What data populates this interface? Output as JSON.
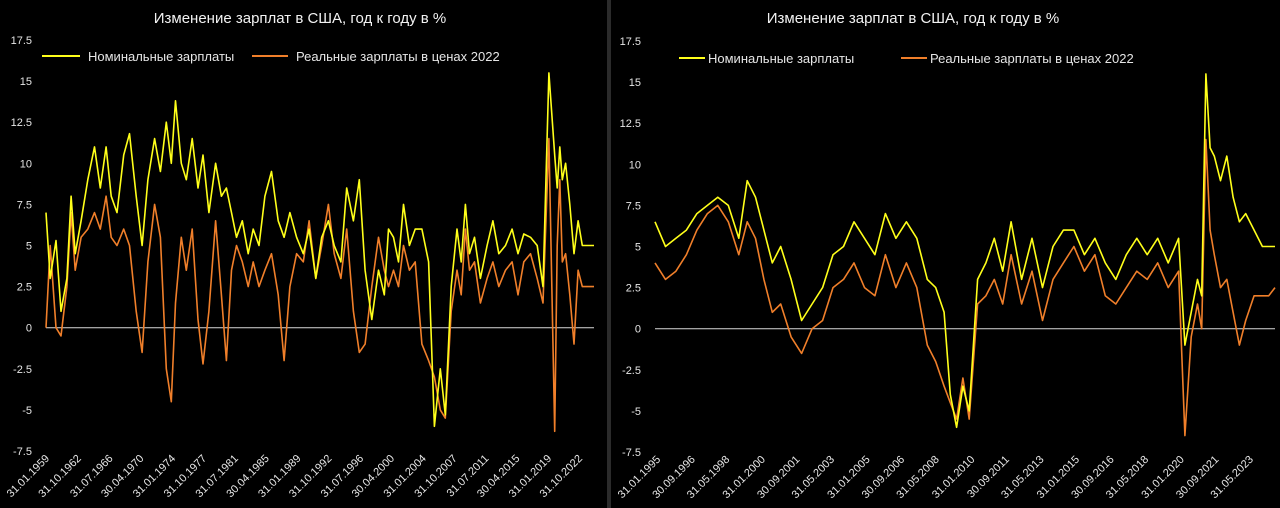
{
  "colors": {
    "nominal": "#ffff1a",
    "real": "#f07f2a",
    "zero_line": "#d9d9d9",
    "background": "#000000"
  },
  "chart_data": [
    {
      "type": "line",
      "title": "Изменение зарплат в США, год к году в %",
      "yticks": [
        "17.5",
        "15",
        "12.5",
        "10",
        "7.5",
        "5",
        "2.5",
        "0",
        "-2.5",
        "-5",
        "-7.5"
      ],
      "ylim": [
        -7.5,
        17.5
      ],
      "xlim": [
        1959.0,
        2024.6
      ],
      "xticks": [
        {
          "label": "31.01.1959",
          "x": 1959.0
        },
        {
          "label": "31.10.1962",
          "x": 1962.8
        },
        {
          "label": "31.07.1966",
          "x": 1966.6
        },
        {
          "label": "30.04.1970",
          "x": 1970.3
        },
        {
          "label": "31.01.1974",
          "x": 1974.1
        },
        {
          "label": "31.10.1977",
          "x": 1977.8
        },
        {
          "label": "31.07.1981",
          "x": 1981.6
        },
        {
          "label": "30.04.1985",
          "x": 1985.3
        },
        {
          "label": "31.01.1989",
          "x": 1989.1
        },
        {
          "label": "31.10.1992",
          "x": 1992.8
        },
        {
          "label": "31.07.1996",
          "x": 1996.6
        },
        {
          "label": "30.04.2000",
          "x": 2000.3
        },
        {
          "label": "31.01.2004",
          "x": 2004.1
        },
        {
          "label": "31.10.2007",
          "x": 2007.8
        },
        {
          "label": "31.07.2011",
          "x": 2011.6
        },
        {
          "label": "30.04.2015",
          "x": 2015.3
        },
        {
          "label": "31.01.2019",
          "x": 2019.1
        },
        {
          "label": "31.10.2022",
          "x": 2022.8
        }
      ],
      "legend_position": "top-left",
      "series": [
        {
          "name": "Номинальные зарплаты",
          "x": [
            1959.0,
            1959.5,
            1960.2,
            1960.8,
            1961.5,
            1962.0,
            1962.5,
            1963.2,
            1964.0,
            1964.8,
            1965.5,
            1966.2,
            1966.8,
            1967.5,
            1968.3,
            1969.0,
            1969.8,
            1970.5,
            1971.2,
            1972.0,
            1972.7,
            1973.4,
            1974.0,
            1974.5,
            1975.2,
            1975.8,
            1976.5,
            1977.2,
            1977.8,
            1978.5,
            1979.3,
            1980.0,
            1980.6,
            1981.2,
            1981.8,
            1982.5,
            1983.2,
            1983.8,
            1984.5,
            1985.2,
            1986.0,
            1986.8,
            1987.5,
            1988.2,
            1989.0,
            1989.8,
            1990.5,
            1991.3,
            1992.0,
            1992.8,
            1993.5,
            1994.3,
            1995.0,
            1995.8,
            1996.5,
            1997.2,
            1998.0,
            1998.8,
            1999.5,
            2000.0,
            2000.6,
            2001.2,
            2001.8,
            2002.5,
            2003.2,
            2004.0,
            2004.8,
            2005.5,
            2006.2,
            2006.8,
            2007.5,
            2008.2,
            2008.7,
            2009.2,
            2009.7,
            2010.3,
            2011.0,
            2011.8,
            2012.5,
            2013.2,
            2014.0,
            2014.8,
            2015.5,
            2016.2,
            2017.0,
            2017.8,
            2018.5,
            2019.2,
            2019.9,
            2020.2,
            2020.5,
            2020.8,
            2021.2,
            2021.7,
            2022.2,
            2022.7,
            2023.2,
            2023.8,
            2024.3,
            2024.6
          ],
          "values": [
            7.0,
            3.0,
            5.3,
            1.0,
            3.0,
            8.0,
            4.5,
            6.5,
            9.0,
            11.0,
            8.5,
            11.0,
            8.0,
            7.0,
            10.5,
            11.8,
            8.0,
            5.0,
            9.0,
            11.5,
            9.5,
            12.5,
            10.0,
            13.8,
            10.0,
            9.0,
            11.5,
            8.5,
            10.5,
            7.0,
            10.0,
            8.0,
            8.5,
            7.0,
            5.5,
            6.5,
            4.5,
            6.0,
            5.0,
            8.0,
            9.5,
            6.5,
            5.5,
            7.0,
            5.5,
            4.5,
            6.0,
            3.0,
            5.5,
            6.5,
            5.0,
            4.0,
            8.5,
            6.5,
            9.0,
            3.5,
            0.5,
            3.5,
            2.0,
            6.0,
            5.5,
            4.0,
            7.5,
            5.0,
            6.0,
            6.0,
            4.0,
            -6.0,
            -2.5,
            -5.3,
            2.5,
            6.0,
            4.0,
            7.5,
            4.5,
            5.5,
            3.0,
            5.0,
            6.5,
            4.5,
            5.0,
            6.0,
            4.5,
            5.7,
            5.5,
            5.0,
            2.5,
            15.5,
            10.5,
            8.5,
            11.0,
            9.0,
            10.0,
            7.5,
            4.5,
            6.5,
            5.0,
            5.0,
            5.0,
            5.0
          ],
          "color": "#ffff1a"
        },
        {
          "name": "Реальные зарплаты в ценах 2022",
          "x": [
            1959.0,
            1959.5,
            1960.2,
            1960.8,
            1961.5,
            1962.0,
            1962.5,
            1963.2,
            1964.0,
            1964.8,
            1965.5,
            1966.2,
            1966.8,
            1967.5,
            1968.3,
            1969.0,
            1969.8,
            1970.5,
            1971.2,
            1972.0,
            1972.7,
            1973.4,
            1974.0,
            1974.5,
            1975.2,
            1975.8,
            1976.5,
            1977.2,
            1977.8,
            1978.5,
            1979.3,
            1980.0,
            1980.6,
            1981.2,
            1981.8,
            1982.5,
            1983.2,
            1983.8,
            1984.5,
            1985.2,
            1986.0,
            1986.8,
            1987.5,
            1988.2,
            1989.0,
            1989.8,
            1990.5,
            1991.3,
            1992.0,
            1992.8,
            1993.5,
            1994.3,
            1995.0,
            1995.8,
            1996.5,
            1997.2,
            1998.0,
            1998.8,
            1999.5,
            2000.0,
            2000.6,
            2001.2,
            2001.8,
            2002.5,
            2003.2,
            2004.0,
            2004.8,
            2005.5,
            2006.2,
            2006.8,
            2007.5,
            2008.2,
            2008.7,
            2009.2,
            2009.7,
            2010.3,
            2011.0,
            2011.8,
            2012.5,
            2013.2,
            2014.0,
            2014.8,
            2015.5,
            2016.2,
            2017.0,
            2017.8,
            2018.5,
            2019.2,
            2019.9,
            2020.2,
            2020.5,
            2020.8,
            2021.2,
            2021.7,
            2022.2,
            2022.7,
            2023.2,
            2023.8,
            2024.3,
            2024.6
          ],
          "values": [
            0.0,
            5.0,
            0.0,
            -0.5,
            2.5,
            7.0,
            3.5,
            5.5,
            6.0,
            7.0,
            6.0,
            8.0,
            5.5,
            5.0,
            6.0,
            5.0,
            1.0,
            -1.5,
            4.0,
            7.5,
            5.5,
            -2.5,
            -4.5,
            1.5,
            5.5,
            3.5,
            6.0,
            0.5,
            -2.2,
            1.0,
            6.5,
            2.0,
            -2.0,
            3.5,
            5.0,
            4.0,
            2.5,
            4.0,
            2.5,
            3.5,
            4.5,
            2.0,
            -2.0,
            2.5,
            4.5,
            4.0,
            6.5,
            3.0,
            5.0,
            7.5,
            4.5,
            3.0,
            6.0,
            1.0,
            -1.5,
            -1.0,
            2.5,
            5.5,
            3.5,
            2.5,
            3.5,
            2.5,
            5.0,
            3.5,
            4.0,
            -1.0,
            -2.0,
            -3.0,
            -5.0,
            -5.5,
            1.0,
            3.5,
            2.0,
            6.0,
            3.5,
            4.0,
            1.5,
            3.0,
            4.0,
            2.5,
            3.5,
            4.0,
            2.0,
            4.0,
            4.5,
            3.0,
            1.5,
            11.5,
            -6.3,
            5.0,
            9.0,
            4.0,
            4.5,
            2.0,
            -1.0,
            3.5,
            2.5,
            2.5,
            2.5,
            2.5
          ],
          "color": "#f07f2a"
        }
      ]
    },
    {
      "type": "line",
      "title": "Изменение зарплат в США, год к году в %",
      "yticks": [
        "17.5",
        "15",
        "12.5",
        "10",
        "7.5",
        "5",
        "2.5",
        "0",
        "-2.5",
        "-5",
        "-7.5"
      ],
      "ylim": [
        -7.5,
        17.5
      ],
      "xlim": [
        1995.0,
        2024.6
      ],
      "xticks": [
        {
          "label": "31.01.1995",
          "x": 1995.1
        },
        {
          "label": "30.09.1996",
          "x": 1996.75
        },
        {
          "label": "31.05.1998",
          "x": 1998.4
        },
        {
          "label": "31.01.2000",
          "x": 2000.1
        },
        {
          "label": "30.09.2001",
          "x": 2001.75
        },
        {
          "label": "31.05.2003",
          "x": 2003.4
        },
        {
          "label": "31.01.2005",
          "x": 2005.1
        },
        {
          "label": "30.09.2006",
          "x": 2006.75
        },
        {
          "label": "31.05.2008",
          "x": 2008.4
        },
        {
          "label": "31.01.2010",
          "x": 2010.1
        },
        {
          "label": "30.09.2011",
          "x": 2011.75
        },
        {
          "label": "31.05.2013",
          "x": 2013.4
        },
        {
          "label": "31.01.2015",
          "x": 2015.1
        },
        {
          "label": "30.09.2016",
          "x": 2016.75
        },
        {
          "label": "31.05.2018",
          "x": 2018.4
        },
        {
          "label": "31.01.2020",
          "x": 2020.1
        },
        {
          "label": "30.09.2021",
          "x": 2021.75
        },
        {
          "label": "31.05.2023",
          "x": 2023.4
        }
      ],
      "legend_position": "top-left",
      "series": [
        {
          "name": "Номинальные зарплаты",
          "x": [
            1995.0,
            1995.5,
            1996.0,
            1996.5,
            1997.0,
            1997.5,
            1998.0,
            1998.5,
            1999.0,
            1999.4,
            1999.8,
            2000.2,
            2000.6,
            2001.0,
            2001.5,
            2002.0,
            2002.5,
            2003.0,
            2003.5,
            2004.0,
            2004.5,
            2005.0,
            2005.5,
            2006.0,
            2006.5,
            2007.0,
            2007.5,
            2008.0,
            2008.4,
            2008.8,
            2009.1,
            2009.4,
            2009.7,
            2010.0,
            2010.4,
            2010.8,
            2011.2,
            2011.6,
            2012.0,
            2012.5,
            2013.0,
            2013.5,
            2014.0,
            2014.5,
            2015.0,
            2015.5,
            2016.0,
            2016.5,
            2017.0,
            2017.5,
            2018.0,
            2018.5,
            2019.0,
            2019.5,
            2020.0,
            2020.3,
            2020.6,
            2020.9,
            2021.1,
            2021.3,
            2021.5,
            2021.7,
            2022.0,
            2022.3,
            2022.6,
            2022.9,
            2023.2,
            2023.6,
            2024.0,
            2024.3,
            2024.6
          ],
          "values": [
            6.5,
            5.0,
            5.5,
            6.0,
            7.0,
            7.5,
            8.0,
            7.5,
            5.5,
            9.0,
            8.0,
            6.0,
            4.0,
            5.0,
            3.0,
            0.5,
            1.5,
            2.5,
            4.5,
            5.0,
            6.5,
            5.5,
            4.5,
            7.0,
            5.5,
            6.5,
            5.5,
            3.0,
            2.5,
            1.0,
            -4.0,
            -6.0,
            -3.5,
            -5.0,
            3.0,
            4.0,
            5.5,
            3.5,
            6.5,
            3.0,
            5.5,
            2.5,
            5.0,
            6.0,
            6.0,
            4.5,
            5.5,
            4.0,
            3.0,
            4.5,
            5.5,
            4.5,
            5.5,
            4.0,
            5.5,
            -1.0,
            1.0,
            3.0,
            2.0,
            15.5,
            11.0,
            10.5,
            9.0,
            10.5,
            8.0,
            6.5,
            7.0,
            6.0,
            5.0,
            5.0,
            5.0
          ],
          "color": "#ffff1a"
        },
        {
          "name": "Реальные зарплаты в ценах 2022",
          "x": [
            1995.0,
            1995.5,
            1996.0,
            1996.5,
            1997.0,
            1997.5,
            1998.0,
            1998.5,
            1999.0,
            1999.4,
            1999.8,
            2000.2,
            2000.6,
            2001.0,
            2001.5,
            2002.0,
            2002.5,
            2003.0,
            2003.5,
            2004.0,
            2004.5,
            2005.0,
            2005.5,
            2006.0,
            2006.5,
            2007.0,
            2007.5,
            2008.0,
            2008.4,
            2008.8,
            2009.1,
            2009.4,
            2009.7,
            2010.0,
            2010.4,
            2010.8,
            2011.2,
            2011.6,
            2012.0,
            2012.5,
            2013.0,
            2013.5,
            2014.0,
            2014.5,
            2015.0,
            2015.5,
            2016.0,
            2016.5,
            2017.0,
            2017.5,
            2018.0,
            2018.5,
            2019.0,
            2019.5,
            2020.0,
            2020.3,
            2020.6,
            2020.9,
            2021.1,
            2021.3,
            2021.5,
            2021.7,
            2022.0,
            2022.3,
            2022.6,
            2022.9,
            2023.2,
            2023.6,
            2024.0,
            2024.3,
            2024.6
          ],
          "values": [
            4.0,
            3.0,
            3.5,
            4.5,
            6.0,
            7.0,
            7.5,
            6.5,
            4.5,
            6.5,
            5.5,
            3.0,
            1.0,
            1.5,
            -0.5,
            -1.5,
            0.0,
            0.5,
            2.5,
            3.0,
            4.0,
            2.5,
            2.0,
            4.5,
            2.5,
            4.0,
            2.5,
            -1.0,
            -2.0,
            -3.5,
            -4.5,
            -5.5,
            -3.0,
            -5.5,
            1.5,
            2.0,
            3.0,
            1.5,
            4.5,
            1.5,
            3.5,
            0.5,
            3.0,
            4.0,
            5.0,
            3.5,
            4.5,
            2.0,
            1.5,
            2.5,
            3.5,
            3.0,
            4.0,
            2.5,
            3.5,
            -6.5,
            -0.5,
            1.5,
            0.0,
            11.5,
            6.0,
            4.5,
            2.5,
            3.0,
            1.0,
            -1.0,
            0.5,
            2.0,
            2.0,
            2.0,
            2.5
          ],
          "color": "#f07f2a"
        }
      ]
    }
  ]
}
